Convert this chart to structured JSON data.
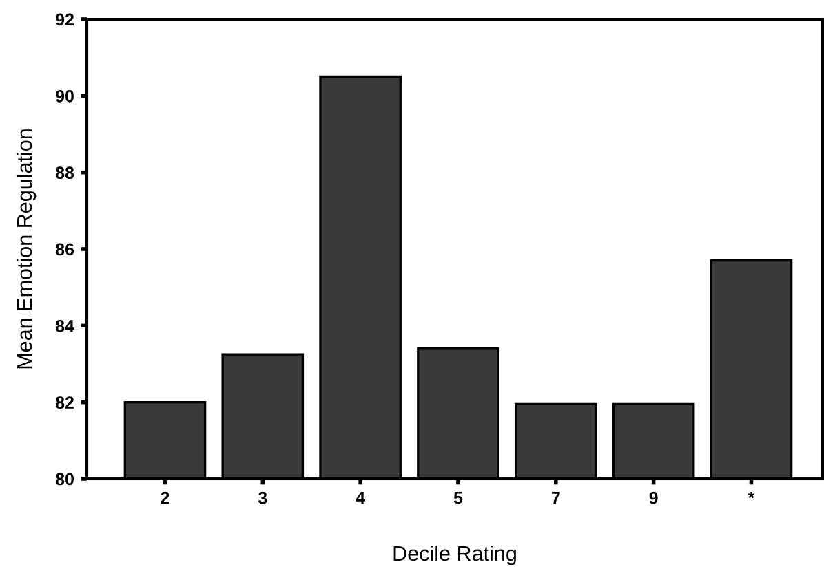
{
  "chart_data": {
    "type": "bar",
    "xlabel": "Decile Rating",
    "ylabel": "Mean Emotion Regulation",
    "categories": [
      "2",
      "3",
      "4",
      "5",
      "7",
      "9",
      "*"
    ],
    "values": [
      82.0,
      83.25,
      90.5,
      83.4,
      81.95,
      81.95,
      85.7
    ],
    "color": "#3a3a3a",
    "ylim": [
      80,
      92
    ],
    "yticks": [
      80,
      82,
      84,
      86,
      88,
      90,
      92
    ],
    "grid": false,
    "legend": false
  }
}
